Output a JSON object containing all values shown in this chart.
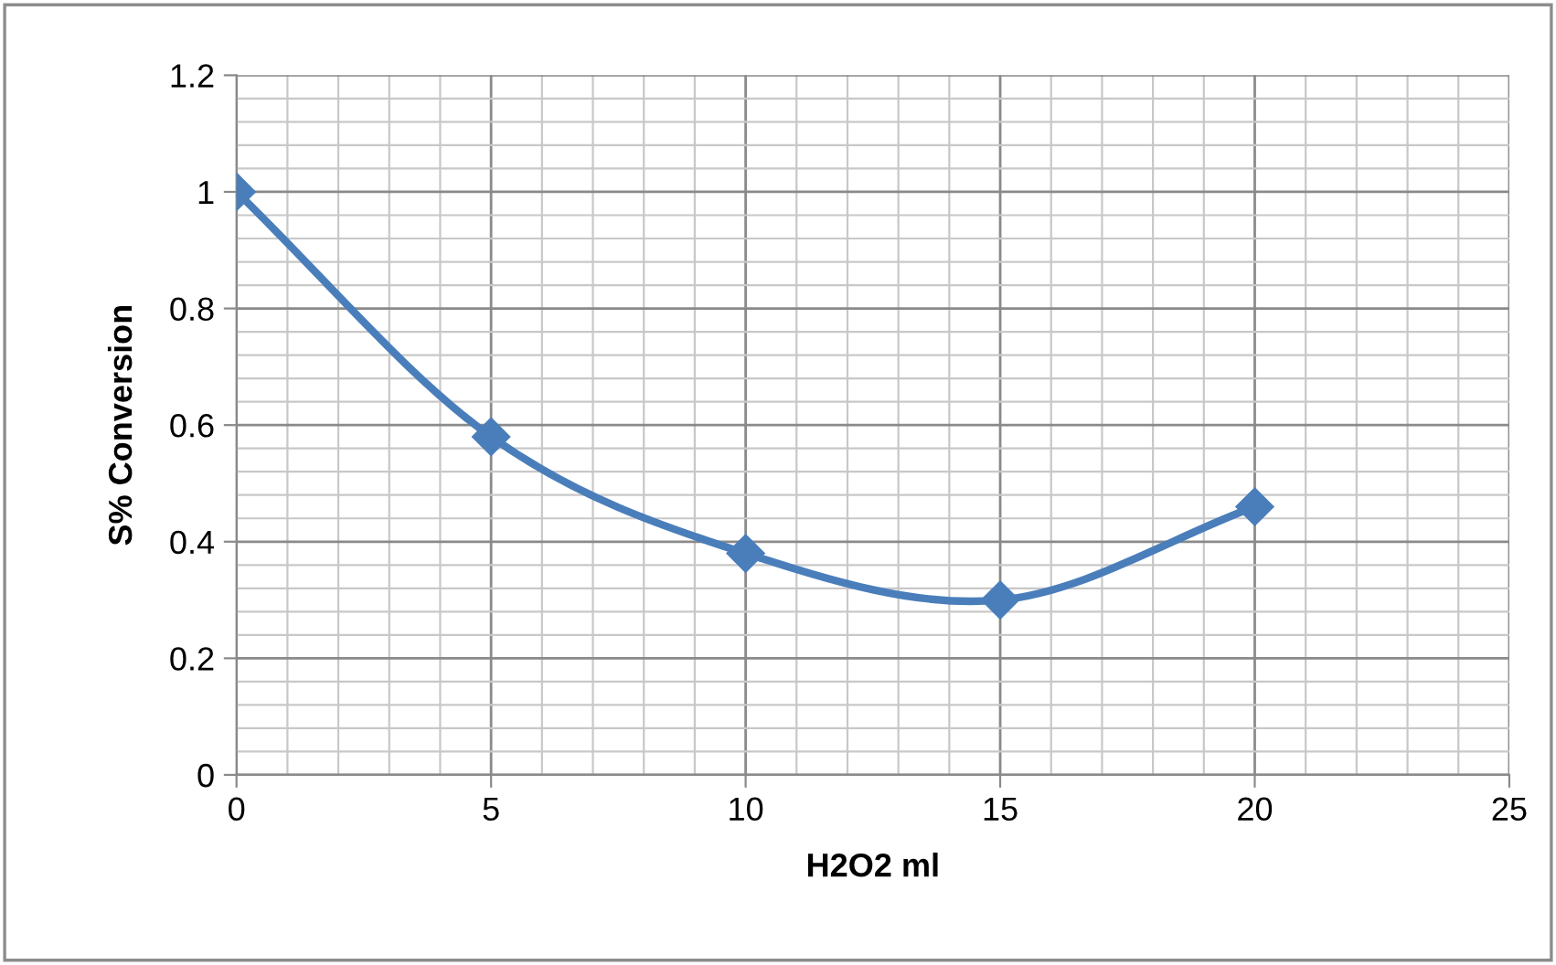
{
  "chart_data": {
    "type": "line",
    "xlabel": "H2O2 ml",
    "ylabel": "S% Conversion",
    "x": [
      0,
      5,
      10,
      15,
      20
    ],
    "series": [
      {
        "color": "#4a7ebb",
        "values": [
          1.0,
          0.58,
          0.38,
          0.3,
          0.46
        ]
      }
    ],
    "xlim": [
      0,
      25
    ],
    "xticks": [
      0,
      5,
      10,
      15,
      20,
      25
    ],
    "ylim": [
      0,
      1.2
    ],
    "yticks": [
      0,
      0.2,
      0.4,
      0.6,
      0.8,
      1,
      1.2
    ],
    "grid": true,
    "marker": "diamond",
    "line_style": "solid"
  }
}
